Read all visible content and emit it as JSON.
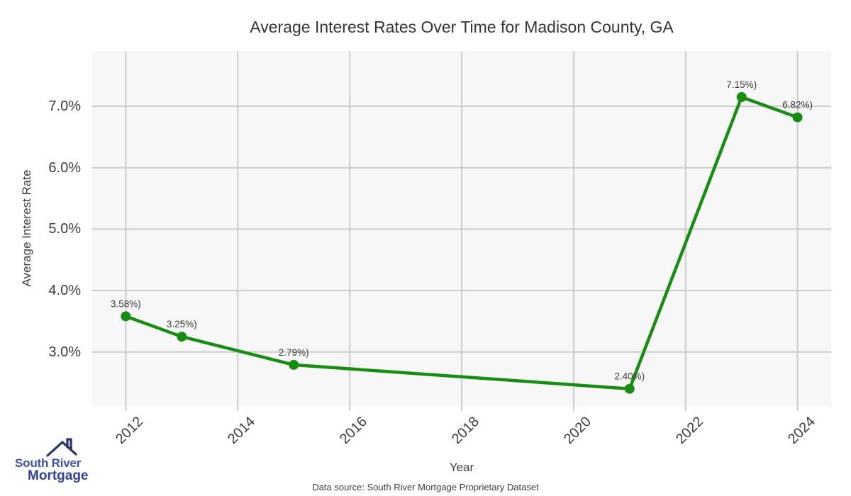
{
  "chart_data": {
    "type": "line",
    "title": "Average Interest Rates Over Time for Madison County, GA",
    "xlabel": "Year",
    "ylabel": "Average Interest Rate",
    "x": [
      2012,
      2013,
      2015,
      2021,
      2023,
      2024
    ],
    "values": [
      3.58,
      3.25,
      2.79,
      2.4,
      7.15,
      6.82
    ],
    "point_labels": [
      "3.58%)",
      "3.25%)",
      "2.79%)",
      "2.40%)",
      "7.15%)",
      "6.82%)"
    ],
    "xticks": [
      2012,
      2014,
      2016,
      2018,
      2020,
      2022,
      2024
    ],
    "xtick_labels": [
      "2012",
      "2014",
      "2016",
      "2018",
      "2020",
      "2022",
      "2024"
    ],
    "yticks": [
      3,
      4,
      5,
      6,
      7
    ],
    "ytick_labels": [
      "3.0%",
      "4.0%",
      "5.0%",
      "6.0%",
      "7.0%"
    ],
    "xlim": [
      2011.4,
      2024.6
    ],
    "ylim": [
      2.12,
      7.9
    ],
    "grid": true,
    "legend": "none",
    "line_color": "#198c14",
    "marker_color": "#198c14",
    "grid_color": "#cccccc",
    "plot_bg_color": "#f7f7f7",
    "label_text_color": "#3a3a3a"
  },
  "footer": {
    "source_text": "Data source: South River Mortgage Proprietary Dataset"
  },
  "logo": {
    "line1": "South River",
    "line2": "Mortgage",
    "text_color1": "#3f51a5",
    "text_color2": "#33409b",
    "roof_color": "#2b3270"
  }
}
